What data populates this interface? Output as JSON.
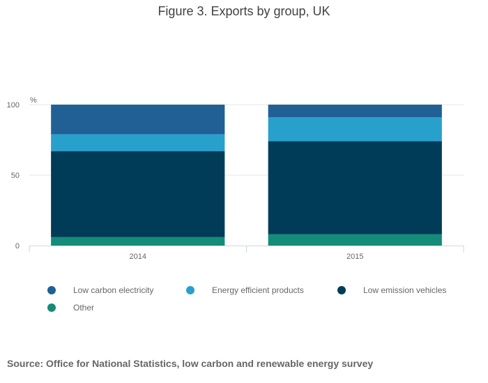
{
  "chart_data": {
    "type": "bar",
    "stacked": true,
    "title": "Figure 3. Exports by group, UK",
    "ylabel": "%",
    "xlabel": "",
    "ylim": [
      0,
      100
    ],
    "yticks": [
      0,
      50,
      100
    ],
    "categories": [
      "2014",
      "2015"
    ],
    "series": [
      {
        "name": "Other",
        "color": "#138c79",
        "values": [
          6,
          8
        ]
      },
      {
        "name": "Low emission vehicles",
        "color": "#003c57",
        "values": [
          61,
          66
        ]
      },
      {
        "name": "Energy efficient products",
        "color": "#27a0cc",
        "values": [
          12,
          17
        ]
      },
      {
        "name": "Low carbon electricity",
        "color": "#206095",
        "values": [
          21,
          9
        ]
      }
    ],
    "legend_order": [
      "Low carbon electricity",
      "Energy efficient products",
      "Low emission vehicles",
      "Other"
    ],
    "legend": "bottom"
  },
  "source": "Source: Office for National Statistics, low carbon and renewable energy survey"
}
